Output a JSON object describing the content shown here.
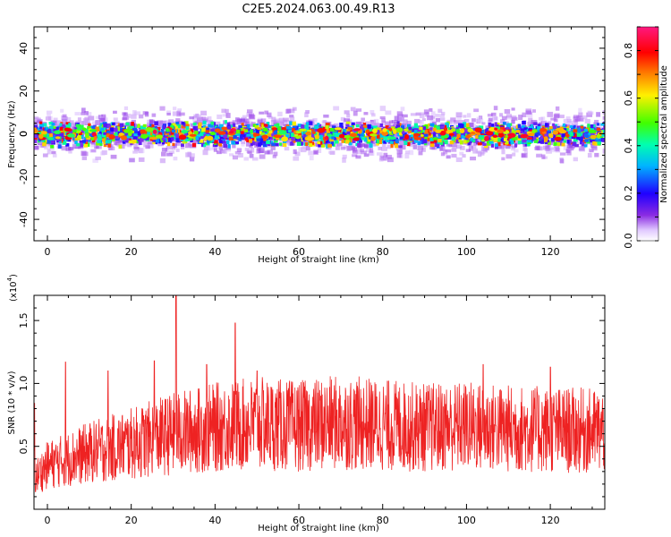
{
  "title": "C2E5.2024.063.00.49.R13",
  "chart_data": [
    {
      "type": "heatmap",
      "name": "spectrogram",
      "xlabel": "Height of straight line (km)",
      "ylabel": "Frequency (Hz)",
      "xlim": [
        -3.2,
        133
      ],
      "ylim": [
        -50,
        50
      ],
      "x_ticks": [
        0,
        20,
        40,
        60,
        80,
        100,
        120
      ],
      "y_ticks": [
        -40,
        -20,
        0,
        20,
        40
      ],
      "colorbar": {
        "label": "Normalized spectral amplitude",
        "range": [
          0.0,
          0.9
        ],
        "ticks": [
          0.0,
          0.2,
          0.4,
          0.6,
          0.8
        ]
      },
      "band_center_hz": 0,
      "band_halfwidth_hz": 6
    },
    {
      "type": "line",
      "name": "snr",
      "xlabel": "Height of straight line (km)",
      "ylabel": "SNR (10 * v/v)",
      "multiplier_label": "(x10",
      "multiplier_exp": "4",
      "multiplier_close": ")",
      "xlim": [
        -3.2,
        133
      ],
      "ylim": [
        0,
        17000
      ],
      "x_ticks": [
        0,
        20,
        40,
        60,
        80,
        100,
        120
      ],
      "y_ticks": [
        5000,
        10000,
        15000
      ],
      "y_tick_labels": [
        "0.5",
        "1.0",
        "1.5"
      ],
      "color": "#ee2222",
      "trend": {
        "x": [
          -3,
          0,
          10,
          20,
          30,
          40,
          50,
          60,
          70,
          80,
          90,
          100,
          110,
          120,
          133
        ],
        "y": [
          2500,
          3500,
          4500,
          5200,
          6000,
          6500,
          6800,
          6600,
          6900,
          6700,
          6500,
          6600,
          6400,
          6300,
          6200
        ]
      },
      "spikes": [
        {
          "x": 4.3,
          "y": 11700
        },
        {
          "x": 14.5,
          "y": 11000
        },
        {
          "x": 25.5,
          "y": 11800
        },
        {
          "x": 30.7,
          "y": 17000
        },
        {
          "x": 38.0,
          "y": 11500
        },
        {
          "x": 44.8,
          "y": 14800
        },
        {
          "x": 50.0,
          "y": 11000
        },
        {
          "x": 104.0,
          "y": 11500
        },
        {
          "x": 120.0,
          "y": 11300
        }
      ]
    }
  ]
}
